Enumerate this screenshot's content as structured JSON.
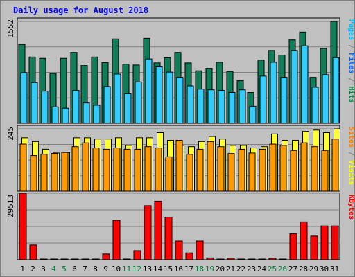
{
  "chart_data": {
    "type": "bar",
    "title": "Daily usage for August 2018",
    "categories": [
      "1",
      "2",
      "3",
      "4",
      "5",
      "6",
      "7",
      "8",
      "9",
      "10",
      "11",
      "12",
      "13",
      "14",
      "15",
      "16",
      "17",
      "18",
      "19",
      "20",
      "21",
      "22",
      "23",
      "24",
      "25",
      "26",
      "27",
      "28",
      "29",
      "30",
      "31"
    ],
    "weekend_days": [
      "4",
      "5",
      "11",
      "12",
      "18",
      "19",
      "25",
      "26"
    ],
    "panels": [
      {
        "id": "hits",
        "ymax_label": "1552",
        "ymax": 1552,
        "legend": [
          {
            "text": "Pages",
            "color": "#00c0ff"
          },
          {
            "text": " / ",
            "color": "#808080"
          },
          {
            "text": "Files",
            "color": "#0060ff"
          },
          {
            "text": " / ",
            "color": "#808080"
          },
          {
            "text": "Hits",
            "color": "#008040"
          }
        ],
        "series": [
          {
            "name": "Hits",
            "color": "#0f7d5a",
            "values": [
              1200,
              1010,
              990,
              760,
              990,
              1080,
              880,
              1010,
              925,
              1285,
              900,
              888,
              1295,
              920,
              1000,
              1080,
              920,
              800,
              838,
              930,
              790,
              648,
              470,
              963,
              1110,
              1040,
              1270,
              1390,
              700,
              1140,
              1552
            ]
          },
          {
            "name": "Files",
            "color": "#3060e0",
            "values": [
              250,
              180,
              130,
              40,
              40,
              150,
              50,
              30,
              40,
              300,
              40,
              40,
              300,
              50,
              40,
              140,
              20,
              10,
              20,
              20,
              10,
              10,
              20,
              140,
              240,
              160,
              240,
              160,
              100,
              150,
              170
            ]
          },
          {
            "name": "Pages",
            "color": "#33ccff",
            "values": [
              770,
              620,
              490,
              250,
              230,
              500,
              310,
              275,
              560,
              750,
              450,
              630,
              980,
              860,
              780,
              700,
              570,
              520,
              510,
              500,
              470,
              510,
              260,
              720,
              930,
              700,
              1110,
              1180,
              550,
              740,
              1000
            ]
          }
        ]
      },
      {
        "id": "visits",
        "ymax_label": "245",
        "ymax": 245,
        "legend": [
          {
            "text": "Sites",
            "color": "#ff8000"
          },
          {
            "text": " / ",
            "color": "#808080"
          },
          {
            "text": "Visits",
            "color": "#ffff00"
          }
        ],
        "series": [
          {
            "name": "Visits",
            "color": "#ffff33",
            "values": [
              210,
              195,
              165,
              150,
              152,
              210,
              210,
              205,
              205,
              210,
              180,
              210,
              210,
              230,
              200,
              180,
              175,
              195,
              215,
              205,
              180,
              180,
              170,
              175,
              225,
              200,
              200,
              235,
              240,
              230,
              245
            ]
          },
          {
            "name": "Sites",
            "color": "#ff9900",
            "values": [
              185,
              140,
              145,
              148,
              152,
              175,
              190,
              170,
              165,
              170,
              165,
              165,
              175,
              170,
              135,
              200,
              145,
              165,
              195,
              175,
              148,
              165,
              150,
              165,
              185,
              180,
              160,
              190,
              175,
              160,
              205
            ]
          }
        ]
      },
      {
        "id": "kbytes",
        "ymax_label": "29513",
        "ymax": 29513,
        "legend": [
          {
            "text": "KBytes",
            "color": "#ff0000"
          }
        ],
        "series": [
          {
            "name": "KBytes",
            "color": "#ff0000",
            "values": [
              29513,
              6500,
              300,
              300,
              300,
              300,
              300,
              300,
              2500,
              17500,
              300,
              4000,
              24000,
              26000,
              18900,
              8300,
              3000,
              8300,
              800,
              300,
              700,
              300,
              300,
              300,
              650,
              300,
              11500,
              16800,
              10500,
              15000,
              15000
            ]
          }
        ]
      }
    ]
  }
}
